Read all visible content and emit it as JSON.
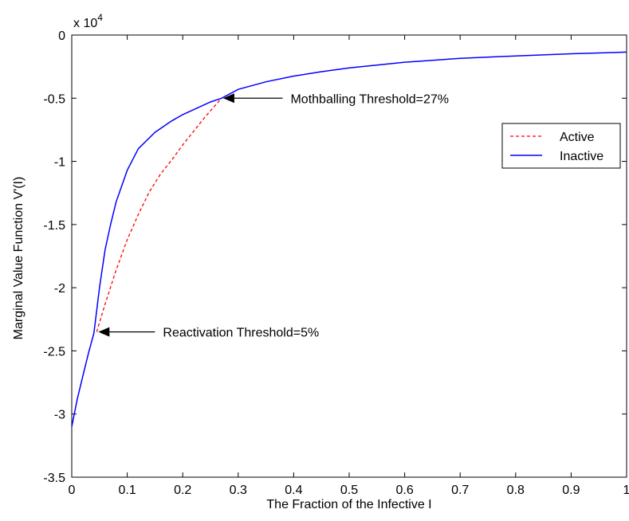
{
  "chart_data": {
    "type": "line",
    "title": "",
    "xlabel": "The Fraction of the Infective I",
    "ylabel": "Marginal Value Function V'(I)",
    "exponent_label": {
      "base": "x 10",
      "exp": "4"
    },
    "xlim": [
      0,
      1
    ],
    "ylim": [
      -3.5,
      0
    ],
    "x_ticks": [
      0,
      0.1,
      0.2,
      0.3,
      0.4,
      0.5,
      0.6,
      0.7,
      0.8,
      0.9,
      1
    ],
    "x_tick_labels": [
      "0",
      "0.1",
      "0.2",
      "0.3",
      "0.4",
      "0.5",
      "0.6",
      "0.7",
      "0.8",
      "0.9",
      "1"
    ],
    "y_ticks": [
      0,
      -0.5,
      -1,
      -1.5,
      -2,
      -2.5,
      -3,
      -3.5
    ],
    "y_tick_labels": [
      "0",
      "-0.5",
      "-1",
      "-1.5",
      "-2",
      "-2.5",
      "-3",
      "-3.5"
    ],
    "grid": false,
    "legend_position": "top-right",
    "series": [
      {
        "name": "Active",
        "color": "#ff0000",
        "style": "dashed",
        "x": [
          0.045,
          0.06,
          0.08,
          0.1,
          0.12,
          0.14,
          0.16,
          0.18,
          0.2,
          0.22,
          0.24,
          0.26,
          0.27
        ],
        "y": [
          -2.35,
          -2.13,
          -1.86,
          -1.62,
          -1.42,
          -1.24,
          -1.1,
          -0.99,
          -0.87,
          -0.76,
          -0.65,
          -0.55,
          -0.5
        ]
      },
      {
        "name": "Inactive",
        "color": "#0000ff",
        "style": "solid",
        "x": [
          0.0,
          0.01,
          0.02,
          0.03,
          0.04,
          0.05,
          0.06,
          0.07,
          0.08,
          0.1,
          0.12,
          0.15,
          0.18,
          0.2,
          0.25,
          0.27,
          0.3,
          0.35,
          0.4,
          0.45,
          0.5,
          0.6,
          0.7,
          0.8,
          0.9,
          1.0
        ],
        "y": [
          -3.1,
          -2.88,
          -2.7,
          -2.52,
          -2.36,
          -2.0,
          -1.7,
          -1.5,
          -1.32,
          -1.07,
          -0.9,
          -0.77,
          -0.68,
          -0.63,
          -0.53,
          -0.5,
          -0.43,
          -0.37,
          -0.325,
          -0.29,
          -0.26,
          -0.215,
          -0.185,
          -0.165,
          -0.148,
          -0.135
        ]
      }
    ],
    "annotations": [
      {
        "text": "Mothballing Threshold=27%",
        "arrow_from": [
          0.38,
          -0.5
        ],
        "arrow_to": [
          0.27,
          -0.5
        ]
      },
      {
        "text": "Reactivation Threshold=5%",
        "arrow_from": [
          0.15,
          -2.35
        ],
        "arrow_to": [
          0.045,
          -2.35
        ]
      }
    ]
  }
}
